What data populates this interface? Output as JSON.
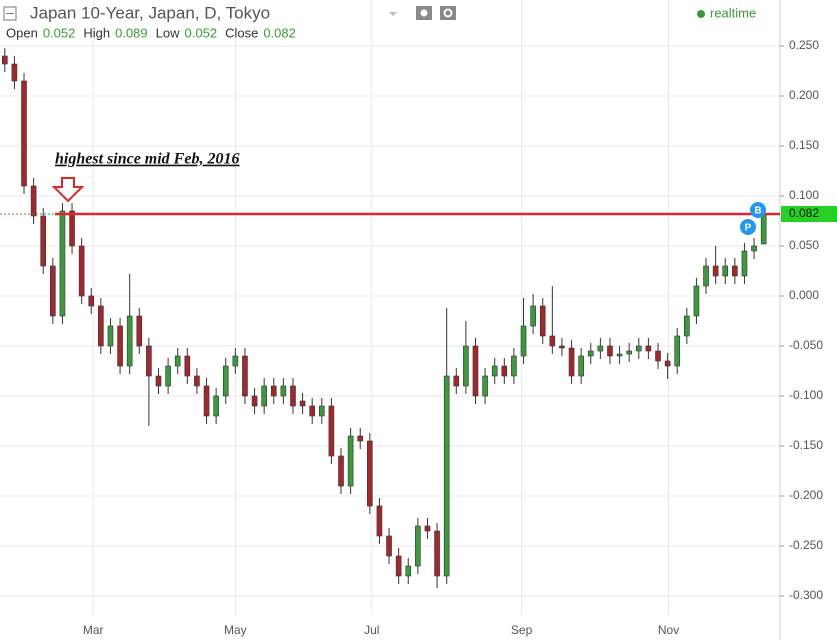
{
  "chart_data": {
    "type": "candlestick",
    "title": "Japan 10-Year, Japan, D, Tokyo",
    "status": "realtime",
    "ohlc_header": {
      "labels": [
        "Open",
        "High",
        "Low",
        "Close"
      ],
      "values": [
        0.052,
        0.089,
        0.052,
        0.082
      ]
    },
    "annotation": "highest since mid Feb, 2016",
    "badges": [
      "B",
      "P"
    ],
    "up_color": "#3b9a3b",
    "down_color": "#a3282b",
    "price_line_color": "#e0252b",
    "grid": true,
    "xlim": [
      -0.5,
      80.7
    ],
    "xticks": [
      {
        "value": 9.2,
        "label": "Mar"
      },
      {
        "value": 24,
        "label": "May"
      },
      {
        "value": 38.2,
        "label": "Jul"
      },
      {
        "value": 53.8,
        "label": "Sep"
      },
      {
        "value": 69.1,
        "label": "Nov"
      }
    ],
    "ylim": [
      -0.319,
      0.296
    ],
    "yticks": [
      {
        "value": 0.25,
        "label": "0.250"
      },
      {
        "value": 0.2,
        "label": "0.200"
      },
      {
        "value": 0.15,
        "label": "0.150"
      },
      {
        "value": 0.1,
        "label": "0.100"
      },
      {
        "value": 0.05,
        "label": "0.050"
      },
      {
        "value": 0,
        "label": "0.000"
      },
      {
        "value": -0.05,
        "label": "-0.050"
      },
      {
        "value": -0.1,
        "label": "-0.100"
      },
      {
        "value": -0.15,
        "label": "-0.150"
      },
      {
        "value": -0.2,
        "label": "-0.200"
      },
      {
        "value": -0.25,
        "label": "-0.250"
      },
      {
        "value": -0.3,
        "label": "-0.300"
      }
    ],
    "candles": {
      "open": [
        0.24,
        0.232,
        0.215,
        0.11,
        0.08,
        0.03,
        -0.02,
        0.085,
        0.05,
        0.0,
        -0.01,
        -0.05,
        -0.03,
        -0.07,
        -0.02,
        -0.05,
        -0.08,
        -0.09,
        -0.07,
        -0.06,
        -0.08,
        -0.09,
        -0.12,
        -0.1,
        -0.07,
        -0.06,
        -0.1,
        -0.11,
        -0.09,
        -0.1,
        -0.09,
        -0.105,
        -0.11,
        -0.12,
        -0.11,
        -0.16,
        -0.19,
        -0.14,
        -0.145,
        -0.21,
        -0.24,
        -0.26,
        -0.28,
        -0.27,
        -0.23,
        -0.235,
        -0.28,
        -0.08,
        -0.09,
        -0.05,
        -0.1,
        -0.08,
        -0.07,
        -0.08,
        -0.06,
        -0.03,
        -0.01,
        -0.04,
        -0.05,
        -0.052,
        -0.08,
        -0.06,
        -0.055,
        -0.05,
        -0.06,
        -0.058,
        -0.055,
        -0.05,
        -0.055,
        -0.065,
        -0.07,
        -0.04,
        -0.02,
        0.01,
        0.03,
        0.02,
        0.03,
        0.02,
        0.045,
        0.052
      ],
      "high": [
        0.248,
        0.24,
        0.223,
        0.118,
        0.088,
        0.038,
        0.093,
        0.093,
        0.058,
        0.008,
        -0.002,
        -0.022,
        -0.022,
        0.022,
        -0.012,
        -0.042,
        -0.072,
        -0.062,
        -0.052,
        -0.052,
        -0.072,
        -0.082,
        -0.092,
        -0.062,
        -0.052,
        -0.052,
        -0.092,
        -0.082,
        -0.082,
        -0.082,
        -0.082,
        -0.097,
        -0.102,
        -0.102,
        -0.102,
        -0.152,
        -0.132,
        -0.132,
        -0.137,
        -0.202,
        -0.232,
        -0.252,
        -0.262,
        -0.222,
        -0.222,
        -0.227,
        -0.012,
        -0.072,
        -0.025,
        -0.042,
        -0.072,
        -0.062,
        -0.062,
        -0.052,
        -0.002,
        0.002,
        -0.002,
        0.01,
        -0.042,
        -0.044,
        -0.052,
        -0.047,
        -0.042,
        -0.042,
        -0.05,
        -0.047,
        -0.042,
        -0.042,
        -0.047,
        -0.057,
        -0.032,
        -0.012,
        0.018,
        0.038,
        0.05,
        0.038,
        0.038,
        0.053,
        0.058,
        0.089
      ],
      "low": [
        0.224,
        0.207,
        0.102,
        0.072,
        0.022,
        -0.028,
        -0.028,
        0.042,
        -0.008,
        -0.018,
        -0.058,
        -0.058,
        -0.078,
        -0.078,
        -0.058,
        -0.13,
        -0.098,
        -0.098,
        -0.078,
        -0.088,
        -0.098,
        -0.128,
        -0.128,
        -0.108,
        -0.078,
        -0.108,
        -0.118,
        -0.118,
        -0.108,
        -0.108,
        -0.118,
        -0.118,
        -0.128,
        -0.128,
        -0.168,
        -0.198,
        -0.198,
        -0.153,
        -0.218,
        -0.248,
        -0.268,
        -0.288,
        -0.288,
        -0.278,
        -0.243,
        -0.292,
        -0.288,
        -0.098,
        -0.098,
        -0.108,
        -0.108,
        -0.088,
        -0.088,
        -0.088,
        -0.068,
        -0.038,
        -0.048,
        -0.058,
        -0.06,
        -0.088,
        -0.088,
        -0.068,
        -0.063,
        -0.068,
        -0.068,
        -0.066,
        -0.063,
        -0.063,
        -0.073,
        -0.083,
        -0.078,
        -0.048,
        -0.028,
        0.002,
        0.012,
        0.012,
        0.012,
        0.012,
        0.037,
        0.052
      ],
      "close": [
        0.232,
        0.215,
        0.11,
        0.08,
        0.03,
        -0.02,
        0.085,
        0.05,
        0.0,
        -0.01,
        -0.05,
        -0.03,
        -0.07,
        -0.02,
        -0.05,
        -0.08,
        -0.09,
        -0.07,
        -0.06,
        -0.08,
        -0.09,
        -0.12,
        -0.1,
        -0.07,
        -0.06,
        -0.1,
        -0.11,
        -0.09,
        -0.1,
        -0.09,
        -0.11,
        -0.11,
        -0.12,
        -0.11,
        -0.16,
        -0.19,
        -0.14,
        -0.145,
        -0.21,
        -0.24,
        -0.26,
        -0.28,
        -0.27,
        -0.23,
        -0.235,
        -0.28,
        -0.08,
        -0.09,
        -0.05,
        -0.1,
        -0.08,
        -0.07,
        -0.08,
        -0.06,
        -0.03,
        -0.01,
        -0.04,
        -0.05,
        -0.052,
        -0.08,
        -0.06,
        -0.055,
        -0.05,
        -0.06,
        -0.058,
        -0.055,
        -0.05,
        -0.055,
        -0.065,
        -0.07,
        -0.04,
        -0.02,
        0.01,
        0.03,
        0.02,
        0.03,
        0.02,
        0.045,
        0.05,
        0.082
      ]
    }
  }
}
